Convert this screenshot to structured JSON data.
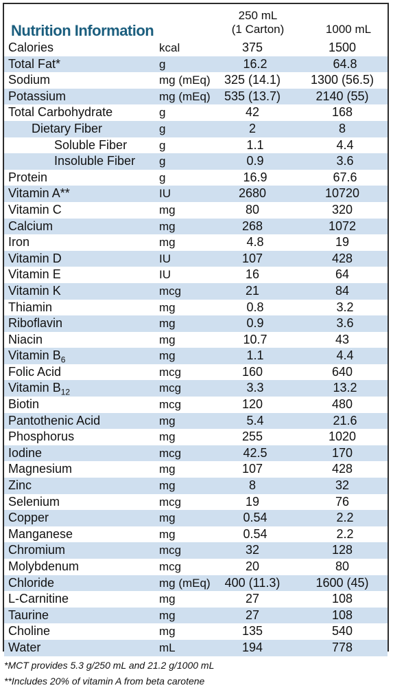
{
  "title": "Nutrition Information",
  "header": {
    "col1": "250 mL",
    "col1_sub": "(1 Carton)",
    "col2": "1000 mL"
  },
  "rows": [
    {
      "name": "Calories",
      "unit": "kcal",
      "v1": "375",
      "v2": "1500",
      "indent": 0
    },
    {
      "name": "Total Fat*",
      "unit": "g",
      "v1": "16.2",
      "v2": "64.8",
      "indent": 0
    },
    {
      "name": "Sodium",
      "unit": "mg (mEq)",
      "v1": "325 (14.1)",
      "v2": "1300 (56.5)",
      "indent": 0
    },
    {
      "name": "Potassium",
      "unit": "mg (mEq)",
      "v1": "535 (13.7)",
      "v2": "2140 (55)",
      "indent": 0
    },
    {
      "name": "Total Carbohydrate",
      "unit": "g",
      "v1": "42",
      "v2": "168",
      "indent": 0
    },
    {
      "name": "Dietary Fiber",
      "unit": "g",
      "v1": "2",
      "v2": "8",
      "indent": 1
    },
    {
      "name": "Soluble Fiber",
      "unit": "g",
      "v1": "1.1",
      "v2": "4.4",
      "indent": 2
    },
    {
      "name": "Insoluble Fiber",
      "unit": "g",
      "v1": "0.9",
      "v2": "3.6",
      "indent": 2
    },
    {
      "name": "Protein",
      "unit": "g",
      "v1": "16.9",
      "v2": "67.6",
      "indent": 0
    },
    {
      "name": "Vitamin A**",
      "unit": "IU",
      "v1": "2680",
      "v2": "10720",
      "indent": 0
    },
    {
      "name": "Vitamin C",
      "unit": "mg",
      "v1": "80",
      "v2": "320",
      "indent": 0
    },
    {
      "name": "Calcium",
      "unit": "mg",
      "v1": "268",
      "v2": "1072",
      "indent": 0
    },
    {
      "name": "Iron",
      "unit": "mg",
      "v1": "4.8",
      "v2": "19",
      "indent": 0
    },
    {
      "name": "Vitamin D",
      "unit": "IU",
      "v1": "107",
      "v2": "428",
      "indent": 0
    },
    {
      "name": "Vitamin E",
      "unit": "IU",
      "v1": "16",
      "v2": "64",
      "indent": 0
    },
    {
      "name": "Vitamin K",
      "unit": "mcg",
      "v1": "21",
      "v2": "84",
      "indent": 0
    },
    {
      "name": "Thiamin",
      "unit": "mg",
      "v1": "0.8",
      "v2": "3.2",
      "indent": 0
    },
    {
      "name": "Riboflavin",
      "unit": "mg",
      "v1": "0.9",
      "v2": "3.6",
      "indent": 0
    },
    {
      "name": "Niacin",
      "unit": "mg",
      "v1": "10.7",
      "v2": "43",
      "indent": 0
    },
    {
      "name": "Vitamin B",
      "sub": "6",
      "unit": "mg",
      "v1": "1.1",
      "v2": "4.4",
      "indent": 0
    },
    {
      "name": "Folic Acid",
      "unit": "mcg",
      "v1": "160",
      "v2": "640",
      "indent": 0
    },
    {
      "name": "Vitamin B",
      "sub": "12",
      "unit": "mcg",
      "v1": "3.3",
      "v2": "13.2",
      "indent": 0
    },
    {
      "name": "Biotin",
      "unit": "mcg",
      "v1": "120",
      "v2": "480",
      "indent": 0
    },
    {
      "name": "Pantothenic Acid",
      "unit": "mg",
      "v1": "5.4",
      "v2": "21.6",
      "indent": 0
    },
    {
      "name": "Phosphorus",
      "unit": "mg",
      "v1": "255",
      "v2": "1020",
      "indent": 0
    },
    {
      "name": "Iodine",
      "unit": "mcg",
      "v1": "42.5",
      "v2": "170",
      "indent": 0
    },
    {
      "name": "Magnesium",
      "unit": "mg",
      "v1": "107",
      "v2": "428",
      "indent": 0
    },
    {
      "name": "Zinc",
      "unit": "mg",
      "v1": "8",
      "v2": "32",
      "indent": 0
    },
    {
      "name": "Selenium",
      "unit": "mcg",
      "v1": "19",
      "v2": "76",
      "indent": 0
    },
    {
      "name": "Copper",
      "unit": "mg",
      "v1": "0.54",
      "v2": "2.2",
      "indent": 0
    },
    {
      "name": "Manganese",
      "unit": "mg",
      "v1": "0.54",
      "v2": "2.2",
      "indent": 0
    },
    {
      "name": "Chromium",
      "unit": "mcg",
      "v1": "32",
      "v2": "128",
      "indent": 0
    },
    {
      "name": "Molybdenum",
      "unit": "mcg",
      "v1": "20",
      "v2": "80",
      "indent": 0
    },
    {
      "name": "Chloride",
      "unit": "mg (mEq)",
      "v1": "400 (11.3)",
      "v2": "1600 (45)",
      "indent": 0
    },
    {
      "name": "L-Carnitine",
      "unit": "mg",
      "v1": "27",
      "v2": "108",
      "indent": 0
    },
    {
      "name": "Taurine",
      "unit": "mg",
      "v1": "27",
      "v2": "108",
      "indent": 0
    },
    {
      "name": "Choline",
      "unit": "mg",
      "v1": "135",
      "v2": "540",
      "indent": 0
    },
    {
      "name": "Water",
      "unit": "mL",
      "v1": "194",
      "v2": "778",
      "indent": 0
    }
  ],
  "footnotes": [
    "*MCT provides 5.3 g/250 mL and 21.2 g/1000 mL",
    "**Includes 20% of vitamin A from beta carotene"
  ],
  "colors": {
    "title": "#1b5e7e",
    "row_shade": "#cfdfef",
    "border": "#2b2b2b"
  }
}
